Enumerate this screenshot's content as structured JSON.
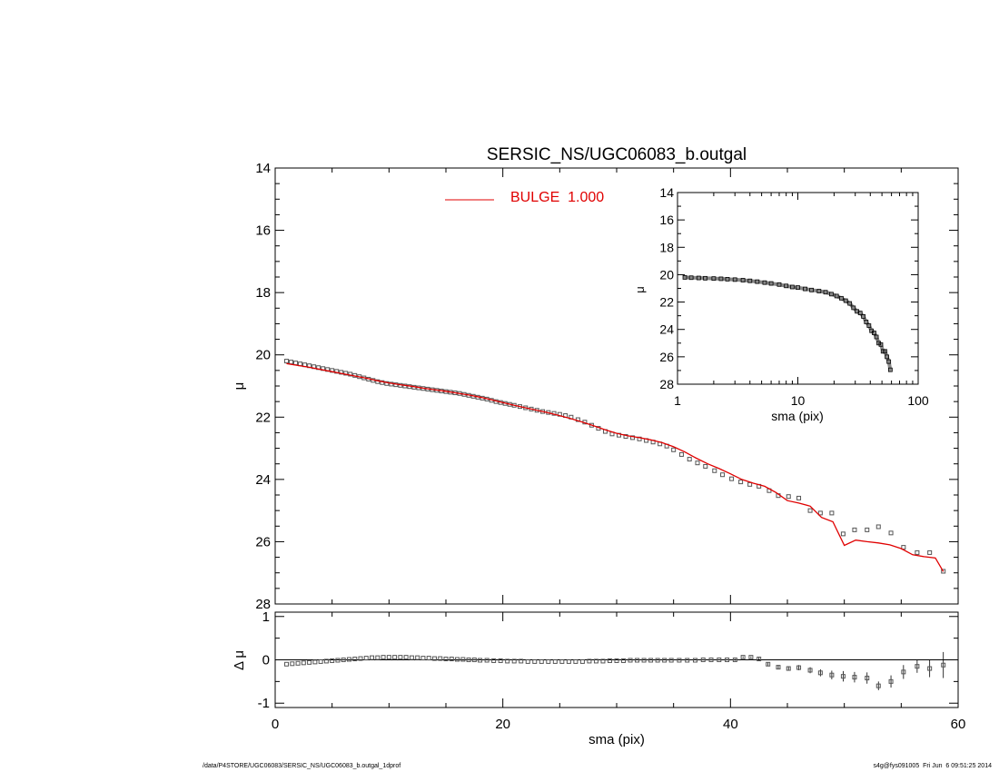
{
  "chart_data": [
    {
      "type": "scatter",
      "title": "SERSIC_NS/UGC06083_b.outgal",
      "xlabel": "",
      "ylabel": "μ",
      "xlim": [
        0,
        60
      ],
      "ylim": [
        28,
        14
      ],
      "yticks": [
        14,
        16,
        18,
        20,
        22,
        24,
        26,
        28
      ],
      "grid": false,
      "legend": [
        {
          "label": "BULGE  1.000",
          "color": "#e00000",
          "position": "top-center"
        }
      ],
      "series": [
        {
          "name": "",
          "style": "open-square-markers",
          "color": "#555555",
          "x": [
            1.0,
            1.4,
            1.8,
            2.2,
            2.6,
            3.0,
            3.4,
            3.8,
            4.2,
            4.6,
            5.0,
            5.4,
            5.8,
            6.2,
            6.6,
            7.0,
            7.4,
            7.8,
            8.2,
            8.6,
            9.0,
            9.4,
            9.8,
            10.2,
            10.6,
            11.0,
            11.4,
            11.8,
            12.2,
            12.6,
            13.0,
            13.4,
            13.8,
            14.2,
            14.6,
            15.0,
            15.4,
            15.8,
            16.2,
            16.6,
            17.0,
            17.4,
            17.8,
            18.2,
            18.6,
            19.0,
            19.4,
            19.8,
            20.2,
            20.6,
            21.0,
            21.5,
            22.0,
            22.5,
            23.0,
            23.5,
            24.0,
            24.5,
            25.0,
            25.5,
            26.0,
            26.6,
            27.2,
            27.8,
            28.4,
            29.0,
            29.6,
            30.2,
            30.8,
            31.4,
            32.0,
            32.6,
            33.2,
            33.8,
            34.4,
            35.0,
            35.7,
            36.4,
            37.1,
            37.8,
            38.6,
            39.3,
            40.1,
            40.9,
            41.7,
            42.5,
            43.4,
            44.2,
            45.1,
            46.0,
            47.0,
            47.9,
            48.9,
            49.9,
            50.9,
            52.0,
            53.0,
            54.1,
            55.2,
            56.4,
            57.5,
            58.7
          ],
          "y": [
            20.2,
            20.23,
            20.26,
            20.29,
            20.32,
            20.35,
            20.38,
            20.41,
            20.44,
            20.47,
            20.5,
            20.53,
            20.56,
            20.59,
            20.62,
            20.66,
            20.7,
            20.74,
            20.78,
            20.82,
            20.86,
            20.89,
            20.92,
            20.94,
            20.96,
            20.98,
            21.0,
            21.02,
            21.04,
            21.06,
            21.08,
            21.1,
            21.12,
            21.14,
            21.16,
            21.18,
            21.2,
            21.22,
            21.24,
            21.27,
            21.3,
            21.33,
            21.36,
            21.39,
            21.42,
            21.46,
            21.5,
            21.53,
            21.56,
            21.59,
            21.62,
            21.66,
            21.7,
            21.74,
            21.78,
            21.82,
            21.85,
            21.88,
            21.91,
            21.95,
            22.0,
            22.08,
            22.16,
            22.26,
            22.36,
            22.46,
            22.54,
            22.58,
            22.62,
            22.66,
            22.7,
            22.75,
            22.8,
            22.86,
            22.93,
            23.05,
            23.2,
            23.35,
            23.47,
            23.58,
            23.72,
            23.85,
            23.98,
            24.08,
            24.16,
            24.22,
            24.36,
            24.52,
            24.55,
            24.6,
            25.0,
            25.08,
            25.08,
            25.75,
            25.62,
            25.62,
            25.52,
            25.72,
            26.18,
            26.35,
            26.35,
            26.95
          ]
        },
        {
          "name": "BULGE  1.000",
          "style": "line",
          "color": "#e00000",
          "x": [
            1.0,
            2.0,
            3.0,
            4.0,
            5.0,
            6.0,
            7.0,
            8.0,
            9.0,
            10.0,
            11.0,
            12.0,
            13.0,
            14.0,
            15.0,
            16.0,
            17.0,
            18.0,
            19.0,
            20.0,
            21.0,
            22.0,
            23.0,
            24.0,
            25.0,
            26.0,
            27.0,
            28.0,
            29.0,
            30.0,
            31.0,
            32.0,
            33.0,
            34.0,
            35.0,
            36.0,
            37.0,
            38.0,
            39.0,
            40.0,
            41.0,
            42.0,
            43.0,
            44.0,
            45.0,
            46.0,
            47.0,
            48.0,
            49.0,
            50.0,
            51.0,
            52.0,
            53.0,
            54.0,
            55.0,
            56.0,
            57.0,
            58.0,
            58.7
          ],
          "y": [
            20.28,
            20.34,
            20.4,
            20.47,
            20.54,
            20.61,
            20.68,
            20.75,
            20.83,
            20.9,
            20.96,
            21.01,
            21.07,
            21.12,
            21.17,
            21.23,
            21.29,
            21.36,
            21.44,
            21.53,
            21.62,
            21.7,
            21.78,
            21.86,
            21.95,
            22.05,
            22.16,
            22.28,
            22.41,
            22.52,
            22.6,
            22.66,
            22.73,
            22.82,
            22.95,
            23.12,
            23.32,
            23.5,
            23.65,
            23.82,
            24.0,
            24.12,
            24.22,
            24.42,
            24.68,
            24.76,
            24.86,
            25.22,
            25.36,
            26.12,
            25.95,
            26.0,
            26.04,
            26.1,
            26.22,
            26.42,
            26.48,
            26.52,
            26.96
          ]
        }
      ]
    },
    {
      "type": "scatter",
      "title": "",
      "xlabel": "sma (pix)",
      "ylabel": "Δ μ",
      "xlim": [
        0,
        60
      ],
      "ylim": [
        -1.1,
        1.1
      ],
      "xticks": [
        0,
        20,
        40,
        60
      ],
      "yticks": [
        -1,
        0,
        1
      ],
      "zero_line": true,
      "grid": false,
      "series": [
        {
          "name": "",
          "style": "open-square-markers-with-error-bars",
          "color": "#555555",
          "x": [
            1.0,
            1.5,
            2.0,
            2.5,
            3.0,
            3.5,
            4.0,
            4.5,
            5.0,
            5.5,
            6.0,
            6.5,
            7.0,
            7.5,
            8.0,
            8.5,
            9.0,
            9.5,
            10.0,
            10.5,
            11.0,
            11.5,
            12.0,
            12.5,
            13.0,
            13.5,
            14.0,
            14.5,
            15.0,
            15.5,
            16.0,
            16.5,
            17.0,
            17.5,
            18.0,
            18.6,
            19.2,
            19.8,
            20.4,
            21.0,
            21.6,
            22.2,
            22.8,
            23.4,
            24.0,
            24.6,
            25.2,
            25.8,
            26.4,
            27.0,
            27.6,
            28.2,
            28.8,
            29.4,
            30.0,
            30.6,
            31.2,
            31.8,
            32.4,
            33.0,
            33.6,
            34.2,
            34.8,
            35.5,
            36.2,
            36.9,
            37.6,
            38.3,
            39.0,
            39.7,
            40.4,
            41.1,
            41.8,
            42.5,
            43.3,
            44.2,
            45.1,
            46.0,
            47.0,
            47.9,
            48.9,
            49.9,
            50.9,
            52.0,
            53.0,
            54.1,
            55.2,
            56.4,
            57.5,
            58.7
          ],
          "y": [
            -0.1,
            -0.09,
            -0.08,
            -0.07,
            -0.06,
            -0.05,
            -0.04,
            -0.03,
            -0.02,
            -0.01,
            0.0,
            0.01,
            0.02,
            0.03,
            0.04,
            0.05,
            0.05,
            0.06,
            0.06,
            0.06,
            0.06,
            0.06,
            0.05,
            0.05,
            0.04,
            0.04,
            0.03,
            0.03,
            0.02,
            0.02,
            0.01,
            0.01,
            0.0,
            0.0,
            -0.01,
            -0.01,
            -0.02,
            -0.02,
            -0.03,
            -0.03,
            -0.03,
            -0.04,
            -0.04,
            -0.04,
            -0.04,
            -0.04,
            -0.04,
            -0.04,
            -0.04,
            -0.04,
            -0.03,
            -0.03,
            -0.03,
            -0.02,
            -0.02,
            -0.02,
            -0.01,
            -0.01,
            -0.01,
            -0.01,
            -0.01,
            -0.01,
            -0.01,
            -0.01,
            -0.01,
            -0.01,
            0.0,
            0.0,
            0.0,
            0.0,
            0.0,
            0.06,
            0.06,
            0.02,
            -0.1,
            -0.17,
            -0.2,
            -0.18,
            -0.24,
            -0.3,
            -0.35,
            -0.38,
            -0.4,
            -0.42,
            -0.6,
            -0.5,
            -0.28,
            -0.15,
            -0.2,
            -0.12
          ],
          "err": [
            0.01,
            0.01,
            0.01,
            0.01,
            0.01,
            0.01,
            0.01,
            0.01,
            0.01,
            0.01,
            0.01,
            0.01,
            0.01,
            0.01,
            0.01,
            0.01,
            0.01,
            0.01,
            0.01,
            0.01,
            0.01,
            0.01,
            0.01,
            0.01,
            0.01,
            0.01,
            0.01,
            0.01,
            0.01,
            0.01,
            0.01,
            0.01,
            0.01,
            0.01,
            0.01,
            0.01,
            0.01,
            0.01,
            0.01,
            0.01,
            0.01,
            0.01,
            0.01,
            0.01,
            0.01,
            0.01,
            0.01,
            0.01,
            0.01,
            0.01,
            0.01,
            0.01,
            0.01,
            0.01,
            0.01,
            0.01,
            0.01,
            0.01,
            0.01,
            0.01,
            0.01,
            0.01,
            0.01,
            0.01,
            0.01,
            0.01,
            0.01,
            0.01,
            0.01,
            0.01,
            0.02,
            0.02,
            0.02,
            0.03,
            0.04,
            0.05,
            0.05,
            0.06,
            0.07,
            0.08,
            0.1,
            0.12,
            0.12,
            0.13,
            0.1,
            0.14,
            0.16,
            0.15,
            0.2,
            0.3
          ]
        }
      ]
    },
    {
      "type": "scatter",
      "title": "",
      "xlabel": "sma (pix)",
      "ylabel": "μ",
      "x_scale": "log",
      "xlim": [
        1,
        100
      ],
      "ylim": [
        28,
        14
      ],
      "xticks": [
        1,
        10,
        100
      ],
      "yticks": [
        14,
        16,
        18,
        20,
        22,
        24,
        26,
        28
      ],
      "grid": false,
      "series": [
        {
          "name": "",
          "style": "open-square-markers",
          "color": "#555555",
          "x": [
            1.15,
            1.3,
            1.5,
            1.7,
            2.0,
            2.3,
            2.6,
            3.0,
            3.5,
            4.0,
            4.6,
            5.3,
            6.0,
            7.0,
            8.0,
            9.0,
            10.0,
            11.5,
            13.0,
            15.0,
            17.0,
            19.0,
            21.0,
            23.0,
            25.0,
            27.0,
            29.0,
            31.0,
            33.0,
            35.0,
            37.0,
            39.0,
            41.0,
            43.0,
            45.0,
            47.0,
            49.0,
            51.0,
            53.0,
            55.0,
            57.0,
            58.7
          ],
          "y": [
            20.2,
            20.22,
            20.24,
            20.26,
            20.28,
            20.3,
            20.33,
            20.36,
            20.4,
            20.45,
            20.51,
            20.58,
            20.64,
            20.72,
            20.82,
            20.9,
            20.94,
            21.04,
            21.12,
            21.2,
            21.28,
            21.42,
            21.56,
            21.72,
            21.9,
            22.1,
            22.42,
            22.68,
            22.8,
            23.05,
            23.45,
            23.72,
            24.1,
            24.25,
            24.55,
            25.0,
            25.1,
            25.6,
            25.6,
            26.0,
            26.35,
            26.95
          ]
        }
      ]
    }
  ],
  "footer": {
    "left": "/data/P4STORE/UGC06083/SERSIC_NS/UGC06083_b.outgal_1dprof",
    "right": "s4g@fys091005  Fri Jun  6 09:51:25 2014"
  }
}
